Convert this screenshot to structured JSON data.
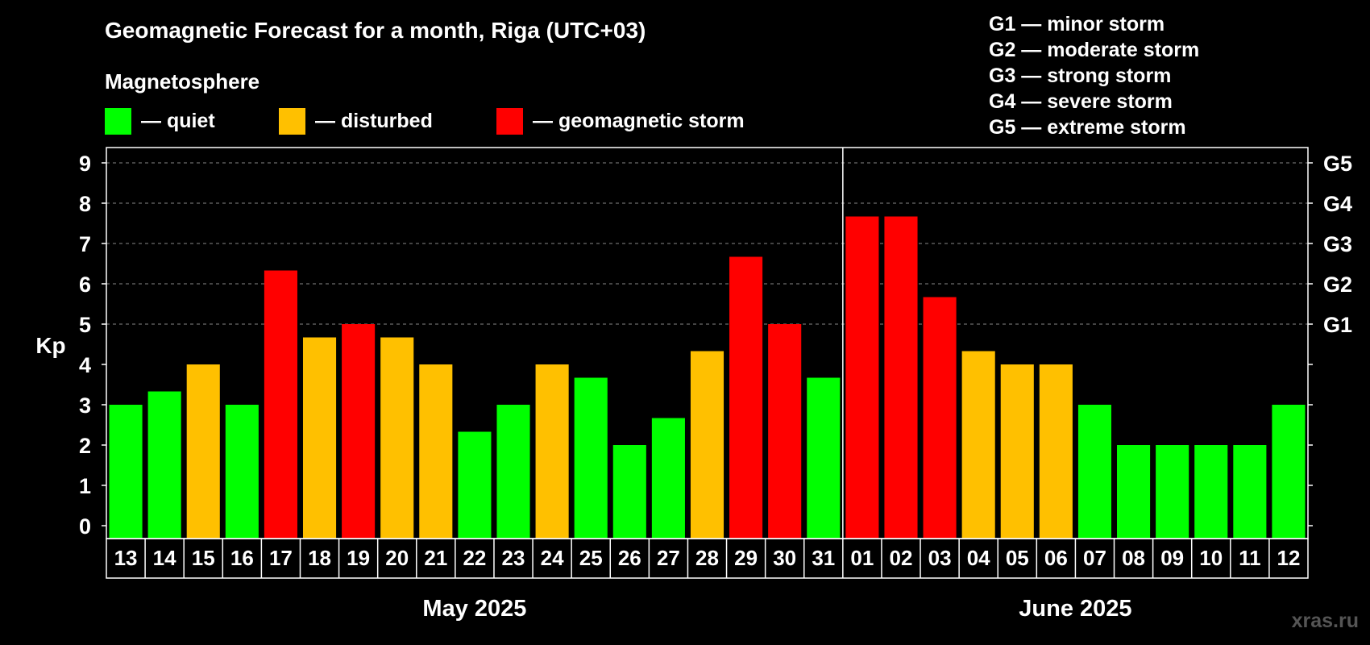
{
  "title": "Geomagnetic Forecast for a month, Riga (UTC+03)",
  "magnetosphere": {
    "title": "Magnetosphere",
    "legend": [
      {
        "label": "— quiet",
        "color": "#00ff00"
      },
      {
        "label": "— disturbed",
        "color": "#ffc000"
      },
      {
        "label": "— geomagnetic storm",
        "color": "#ff0000"
      }
    ]
  },
  "storm_levels": [
    "G1 — minor storm",
    "G2 — moderate storm",
    "G3 — strong storm",
    "G4 — severe storm",
    "G5 — extreme storm"
  ],
  "watermark": "xras.ru",
  "chart_data": {
    "type": "bar",
    "ylabel": "Kp",
    "ylim": [
      0,
      9
    ],
    "yticks": [
      "0",
      "1",
      "2",
      "3",
      "4",
      "5",
      "6",
      "7",
      "8",
      "9"
    ],
    "right_axis_labels": [
      {
        "kp": 5,
        "label": "G1"
      },
      {
        "kp": 6,
        "label": "G2"
      },
      {
        "kp": 7,
        "label": "G3"
      },
      {
        "kp": 8,
        "label": "G4"
      },
      {
        "kp": 9,
        "label": "G5"
      }
    ],
    "grid": "dashed horizontal at each integer Kp from 5 to 9",
    "months": [
      {
        "label": "May 2025",
        "first_index": 0,
        "last_index": 18
      },
      {
        "label": "June 2025",
        "first_index": 19,
        "last_index": 30
      }
    ],
    "categories": [
      "13",
      "14",
      "15",
      "16",
      "17",
      "18",
      "19",
      "20",
      "21",
      "22",
      "23",
      "24",
      "25",
      "26",
      "27",
      "28",
      "29",
      "30",
      "31",
      "01",
      "02",
      "03",
      "04",
      "05",
      "06",
      "07",
      "08",
      "09",
      "10",
      "11",
      "12"
    ],
    "values": [
      3.0,
      3.33,
      4.0,
      3.0,
      6.33,
      4.67,
      5.0,
      4.67,
      4.0,
      2.33,
      3.0,
      4.0,
      3.67,
      2.0,
      2.67,
      4.33,
      6.67,
      5.0,
      3.67,
      7.67,
      7.67,
      5.67,
      4.33,
      4.0,
      4.0,
      3.0,
      2.0,
      2.0,
      2.0,
      2.0,
      3.0
    ],
    "status": [
      "quiet",
      "quiet",
      "disturbed",
      "quiet",
      "storm",
      "disturbed",
      "storm",
      "disturbed",
      "disturbed",
      "quiet",
      "quiet",
      "disturbed",
      "quiet",
      "quiet",
      "quiet",
      "disturbed",
      "storm",
      "storm",
      "quiet",
      "storm",
      "storm",
      "storm",
      "disturbed",
      "disturbed",
      "disturbed",
      "quiet",
      "quiet",
      "quiet",
      "quiet",
      "quiet",
      "quiet"
    ],
    "colors": {
      "quiet": "#00ff00",
      "disturbed": "#ffc000",
      "storm": "#ff0000"
    }
  }
}
